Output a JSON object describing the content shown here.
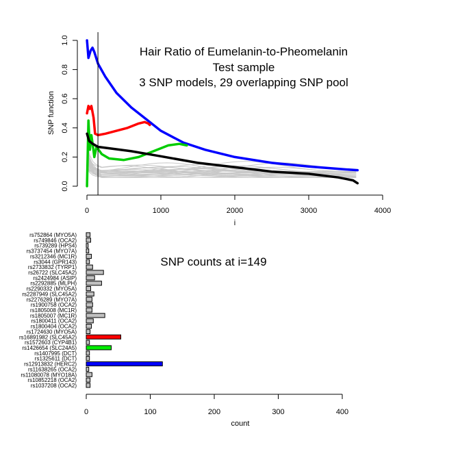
{
  "chart_data": [
    {
      "type": "line",
      "title_lines": [
        "Hair Ratio of Eumelanin-to-Pheomelanin",
        "Test sample",
        "3 SNP models, 29 overlapping SNP pool"
      ],
      "xlabel": "i",
      "ylabel": "SNP function",
      "xlim": [
        0,
        4000
      ],
      "ylim": [
        0,
        1.0
      ],
      "xticks": [
        0,
        1000,
        2000,
        3000,
        4000
      ],
      "yticks": [
        0.0,
        0.2,
        0.4,
        0.6,
        0.8,
        1.0
      ],
      "vline_x": 149,
      "series": [
        {
          "color": "#0000ff",
          "x": [
            1,
            20,
            50,
            75,
            100,
            150,
            250,
            400,
            600,
            800,
            1000,
            1300,
            1600,
            2000,
            2500,
            3000,
            3500,
            3660
          ],
          "y": [
            1.0,
            0.88,
            0.93,
            0.95,
            0.92,
            0.84,
            0.75,
            0.64,
            0.54,
            0.46,
            0.38,
            0.3,
            0.25,
            0.2,
            0.16,
            0.135,
            0.115,
            0.11
          ]
        },
        {
          "color": "#ff0000",
          "x": [
            1,
            20,
            40,
            60,
            90,
            110,
            150,
            250,
            400,
            550,
            700,
            780,
            830,
            850
          ],
          "y": [
            0.5,
            0.55,
            0.53,
            0.55,
            0.47,
            0.36,
            0.35,
            0.36,
            0.38,
            0.4,
            0.43,
            0.44,
            0.43,
            0.42
          ]
        },
        {
          "color": "#00cc00",
          "x": [
            1,
            20,
            40,
            60,
            80,
            100,
            130,
            200,
            300,
            500,
            700,
            900,
            1100,
            1250,
            1350
          ],
          "y": [
            0.0,
            0.45,
            0.25,
            0.35,
            0.28,
            0.2,
            0.27,
            0.22,
            0.19,
            0.18,
            0.2,
            0.24,
            0.28,
            0.29,
            0.28
          ]
        },
        {
          "color": "#000000",
          "x": [
            1,
            30,
            80,
            149,
            300,
            600,
            1000,
            1500,
            2000,
            2500,
            3000,
            3400,
            3600,
            3660
          ],
          "y": [
            0.36,
            0.31,
            0.29,
            0.27,
            0.26,
            0.24,
            0.205,
            0.16,
            0.13,
            0.1,
            0.085,
            0.06,
            0.04,
            0.02
          ]
        }
      ],
      "grey_series_count": 26
    },
    {
      "type": "bar",
      "orientation": "horizontal",
      "title": "SNP counts at i=149",
      "xlabel": "count",
      "xlim": [
        0,
        400
      ],
      "xticks": [
        0,
        100,
        200,
        300,
        400
      ],
      "categories": [
        "rs752864 (MYO5A)",
        "rs749846 (OCA2)",
        "rs739289 (HPS4)",
        "rs3737454 (MYO7A)",
        "rs3212346 (MC1R)",
        "rs3044 (GPR143)",
        "rs2733832 (TYRP1)",
        "rs26722 (SLC45A2)",
        "rs2424984 (ASIP)",
        "rs2292885 (MLPH)",
        "rs2290332 (MYO5A)",
        "rs2287949 (SLC45A2)",
        "rs2276289 (MYO7A)",
        "rs1900758 (OCA2)",
        "rs1805008 (MC1R)",
        "rs1805007 (MC1R)",
        "rs1800411 (OCA2)",
        "rs1800404 (OCA2)",
        "rs1724630 (MYO5A)",
        "rs16891982 (SLC45A2)",
        "rs1572603 (CYP4B1)",
        "rs1426654 (SLC24A5)",
        "rs1407995 (DCT)",
        "rs1325611 (DCT)",
        "rs12913832 (HERC2)",
        "rs11638265 (OCA2)",
        "rs11080078 (MYO18A)",
        "rs10852218 (OCA2)",
        "rs1037208 (OCA2)"
      ],
      "values": [
        6,
        7,
        3,
        4,
        8,
        5,
        10,
        27,
        13,
        24,
        7,
        12,
        9,
        10,
        9,
        29,
        11,
        8,
        6,
        54,
        5,
        39,
        5,
        5,
        119,
        4,
        9,
        6,
        6
      ],
      "bar_colors": [
        "#c0c0c0",
        "#c0c0c0",
        "#c0c0c0",
        "#c0c0c0",
        "#c0c0c0",
        "#c0c0c0",
        "#c0c0c0",
        "#c0c0c0",
        "#c0c0c0",
        "#c0c0c0",
        "#c0c0c0",
        "#c0c0c0",
        "#c0c0c0",
        "#c0c0c0",
        "#c0c0c0",
        "#c0c0c0",
        "#c0c0c0",
        "#c0c0c0",
        "#c0c0c0",
        "#ff0000",
        "#c0c0c0",
        "#00ee00",
        "#c0c0c0",
        "#c0c0c0",
        "#0000ff",
        "#c0c0c0",
        "#c0c0c0",
        "#c0c0c0",
        "#c0c0c0"
      ]
    }
  ]
}
